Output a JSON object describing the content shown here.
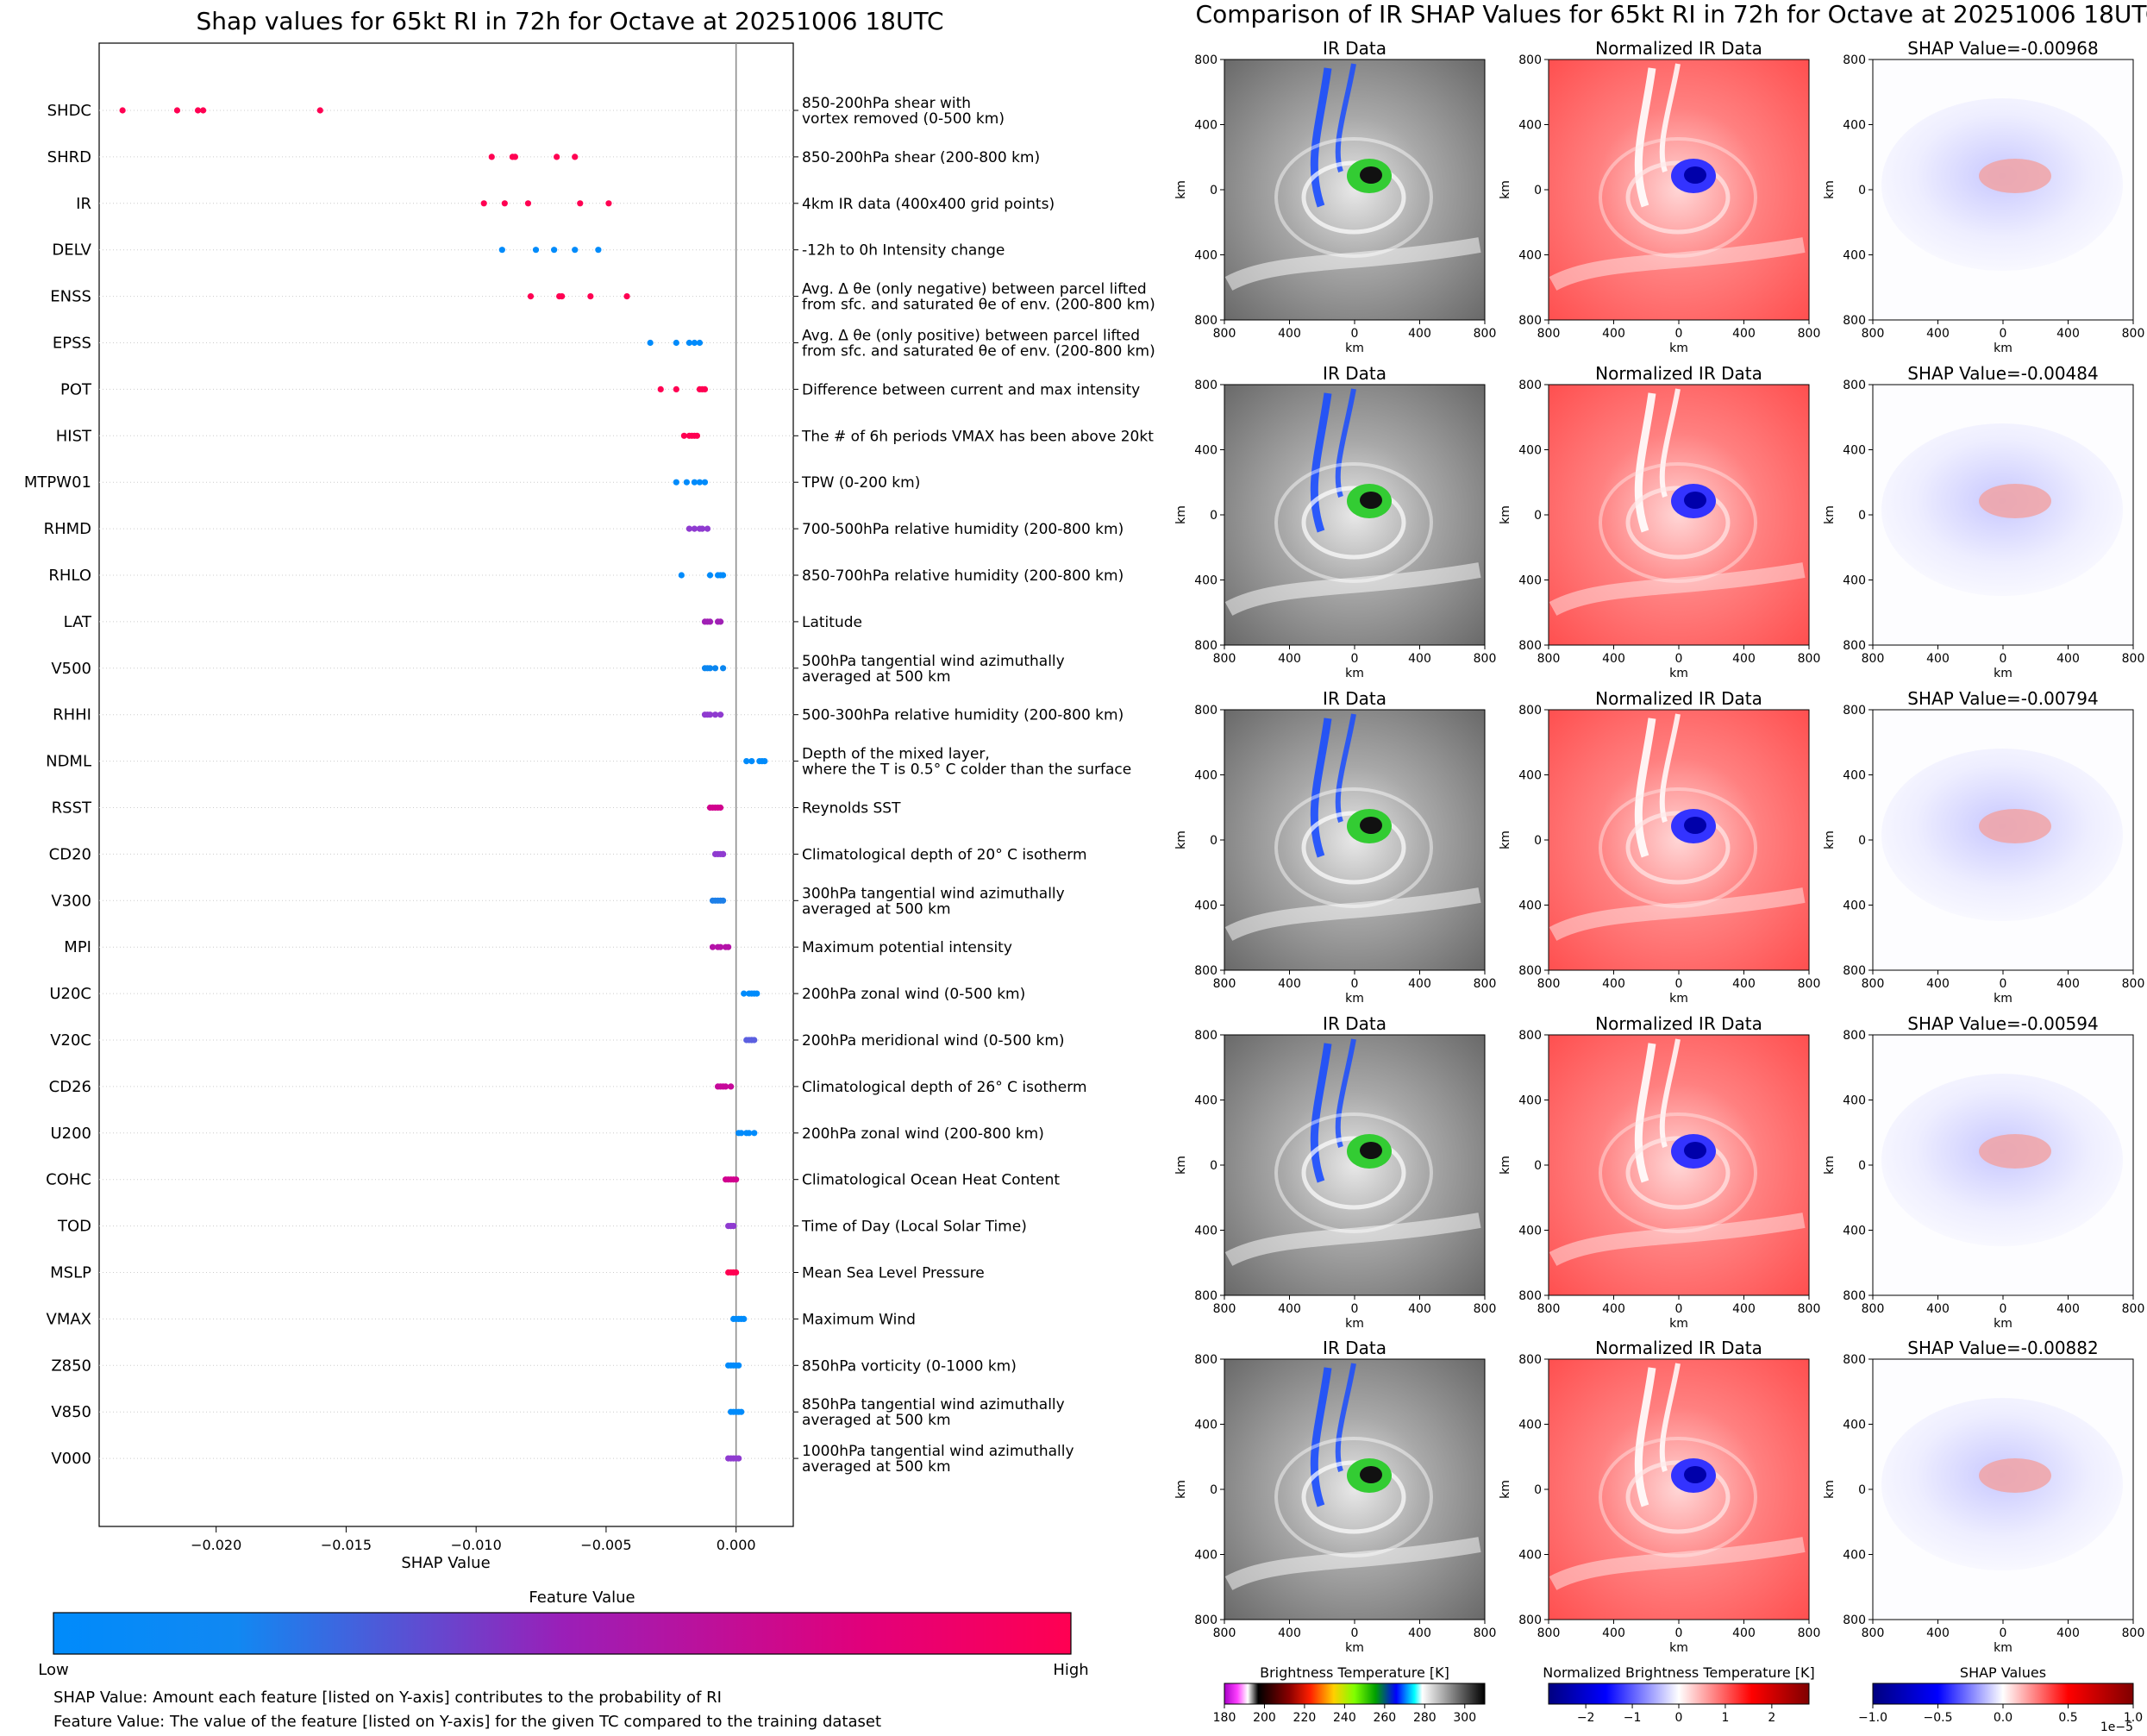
{
  "left": {
    "title": "Shap values for 65kt RI in 72h for Octave at 20251006 18UTC",
    "xlabel": "SHAP Value",
    "colorbar": {
      "title": "Feature Value",
      "low": "Low",
      "high": "High"
    },
    "notes": [
      "SHAP Value: Amount each feature [listed on Y-axis] contributes to the probability of RI",
      "Feature Value: The value of the feature [listed on Y-axis] for the given TC compared to the training dataset"
    ]
  },
  "right": {
    "title": "Comparison of IR SHAP Values for 65kt RI in 72h for Octave at 20251006 18UTC",
    "col_titles": [
      "IR Data",
      "Normalized IR Data"
    ],
    "shap_prefix": "SHAP Value=",
    "axis_label": "km",
    "ticks_x": [
      "800",
      "400",
      "0",
      "400",
      "800"
    ],
    "ticks_y": [
      "800",
      "400",
      "0",
      "400",
      "800"
    ],
    "rows": [
      {
        "shap_title": "SHAP Value=-0.00968"
      },
      {
        "shap_title": "SHAP Value=-0.00484"
      },
      {
        "shap_title": "SHAP Value=-0.00794"
      },
      {
        "shap_title": "SHAP Value=-0.00594"
      },
      {
        "shap_title": "SHAP Value=-0.00882"
      }
    ],
    "colorbars": [
      {
        "title": "Brightness Temperature [K]",
        "ticks": [
          "180",
          "200",
          "220",
          "240",
          "260",
          "280",
          "300"
        ]
      },
      {
        "title": "Normalized Brightness Temperature [K]",
        "ticks": [
          "−2",
          "−1",
          "0",
          "1",
          "2"
        ]
      },
      {
        "title": "SHAP Values",
        "ticks": [
          "−1.0",
          "−0.5",
          "0.0",
          "0.5",
          "1.0"
        ],
        "exponent": "1e−5"
      }
    ]
  },
  "chart_data": {
    "type": "scatter",
    "subtype": "shap-beeswarm",
    "xlim": [
      -0.0245,
      0.0022
    ],
    "xticks": [
      -0.02,
      -0.015,
      -0.01,
      -0.005,
      0.0
    ],
    "xtick_labels": [
      "−0.020",
      "−0.015",
      "−0.010",
      "−0.005",
      "0.000"
    ],
    "color_scale": {
      "low": "#008bfb",
      "high": "#ff0052"
    },
    "features": [
      {
        "name": "SHDC",
        "desc": [
          "850-200hPa shear with",
          "vortex removed (0-500 km)"
        ],
        "color": "#ff0052",
        "x": [
          -0.0236,
          -0.0215,
          -0.0207,
          -0.0205,
          -0.016
        ]
      },
      {
        "name": "SHRD",
        "desc": [
          "850-200hPa shear (200-800 km)"
        ],
        "color": "#ff0052",
        "x": [
          -0.0094,
          -0.0086,
          -0.0085,
          -0.0069,
          -0.0062
        ]
      },
      {
        "name": "IR",
        "desc": [
          "4km IR data (400x400 grid points)"
        ],
        "color": "#ff0052",
        "x": [
          -0.0097,
          -0.0089,
          -0.008,
          -0.006,
          -0.0049
        ]
      },
      {
        "name": "DELV",
        "desc": [
          "-12h to 0h Intensity change"
        ],
        "color": "#008bfb",
        "x": [
          -0.009,
          -0.0077,
          -0.007,
          -0.0062,
          -0.0053
        ]
      },
      {
        "name": "ENSS",
        "desc": [
          "Avg. Δ θe (only negative) between parcel lifted",
          "from sfc. and saturated θe of env. (200-800 km)"
        ],
        "color": "#ff0052",
        "x": [
          -0.0079,
          -0.0068,
          -0.0067,
          -0.0056,
          -0.0042
        ]
      },
      {
        "name": "EPSS",
        "desc": [
          "Avg. Δ θe (only positive) between parcel lifted",
          "from sfc. and saturated θe of env. (200-800 km)"
        ],
        "color": "#008bfb",
        "x": [
          -0.0033,
          -0.0023,
          -0.0018,
          -0.0016,
          -0.0014
        ]
      },
      {
        "name": "POT",
        "desc": [
          "Difference between current and max intensity"
        ],
        "color": "#ff0052",
        "x": [
          -0.0029,
          -0.0023,
          -0.0014,
          -0.0013,
          -0.0012
        ]
      },
      {
        "name": "HIST",
        "desc": [
          "The # of 6h periods VMAX has been above 20kt"
        ],
        "color": "#ff0052",
        "x": [
          -0.002,
          -0.0018,
          -0.0017,
          -0.0016,
          -0.0015
        ]
      },
      {
        "name": "MTPW01",
        "desc": [
          "TPW (0-200 km)"
        ],
        "color": "#008bfb",
        "x": [
          -0.0023,
          -0.0019,
          -0.0016,
          -0.0014,
          -0.0012
        ]
      },
      {
        "name": "RHMD",
        "desc": [
          "700-500hPa relative humidity (200-800 km)"
        ],
        "color": "#8f3bd0",
        "x": [
          -0.0018,
          -0.0016,
          -0.0014,
          -0.0013,
          -0.0011
        ]
      },
      {
        "name": "RHLO",
        "desc": [
          "850-700hPa relative humidity (200-800 km)"
        ],
        "color": "#008bfb",
        "x": [
          -0.0021,
          -0.001,
          -0.0007,
          -0.0006,
          -0.0005
        ]
      },
      {
        "name": "LAT",
        "desc": [
          "Latitude"
        ],
        "color": "#a020b5",
        "x": [
          -0.0012,
          -0.0011,
          -0.001,
          -0.0007,
          -0.0006
        ]
      },
      {
        "name": "V500",
        "desc": [
          "500hPa tangential wind azimuthally",
          "averaged at 500 km"
        ],
        "color": "#0a86f0",
        "x": [
          -0.0012,
          -0.0011,
          -0.001,
          -0.0008,
          -0.0005
        ]
      },
      {
        "name": "RHHI",
        "desc": [
          "500-300hPa relative humidity (200-800 km)"
        ],
        "color": "#8f3bd0",
        "x": [
          -0.0012,
          -0.0011,
          -0.001,
          -0.0008,
          -0.0006
        ]
      },
      {
        "name": "NDML",
        "desc": [
          "Depth of the mixed layer,",
          "where the T is 0.5° C colder than the surface"
        ],
        "color": "#008bfb",
        "x": [
          0.0004,
          0.0006,
          0.0009,
          0.001,
          0.0011
        ]
      },
      {
        "name": "RSST",
        "desc": [
          "Reynolds SST"
        ],
        "color": "#d1008e",
        "x": [
          -0.001,
          -0.0009,
          -0.0008,
          -0.0007,
          -0.0006
        ]
      },
      {
        "name": "CD20",
        "desc": [
          "Climatological depth of 20° C isotherm"
        ],
        "color": "#8f3bd0",
        "x": [
          -0.0008,
          -0.0007,
          -0.0006,
          -0.0005,
          -0.0005
        ]
      },
      {
        "name": "V300",
        "desc": [
          "300hPa tangential wind azimuthally",
          "averaged at 500 km"
        ],
        "color": "#1d7fe8",
        "x": [
          -0.0009,
          -0.0008,
          -0.0007,
          -0.0006,
          -0.0005
        ]
      },
      {
        "name": "MPI",
        "desc": [
          "Maximum potential intensity"
        ],
        "color": "#b412a8",
        "x": [
          -0.0009,
          -0.0007,
          -0.0006,
          -0.0004,
          -0.0003
        ]
      },
      {
        "name": "U20C",
        "desc": [
          "200hPa zonal wind (0-500 km)"
        ],
        "color": "#008bfb",
        "x": [
          0.0003,
          0.0005,
          0.0006,
          0.0007,
          0.0008
        ]
      },
      {
        "name": "V20C",
        "desc": [
          "200hPa meridional wind (0-500 km)"
        ],
        "color": "#5b5fe0",
        "x": [
          0.0004,
          0.0005,
          0.0006,
          0.0006,
          0.0007
        ]
      },
      {
        "name": "CD26",
        "desc": [
          "Climatological depth of 26° C isotherm"
        ],
        "color": "#c6089a",
        "x": [
          -0.0007,
          -0.0006,
          -0.0005,
          -0.0004,
          -0.0002
        ]
      },
      {
        "name": "U200",
        "desc": [
          "200hPa zonal wind (200-800 km)"
        ],
        "color": "#008bfb",
        "x": [
          0.0001,
          0.0002,
          0.0004,
          0.0005,
          0.0007
        ]
      },
      {
        "name": "COHC",
        "desc": [
          "Climatological Ocean Heat Content"
        ],
        "color": "#d1008e",
        "x": [
          -0.0004,
          -0.0003,
          -0.0002,
          -0.0001,
          0.0
        ]
      },
      {
        "name": "TOD",
        "desc": [
          "Time of Day (Local Solar Time)"
        ],
        "color": "#8f3bd0",
        "x": [
          -0.0003,
          -0.0002,
          -0.0002,
          -0.0001,
          -0.0001
        ]
      },
      {
        "name": "MSLP",
        "desc": [
          "Mean Sea Level Pressure"
        ],
        "color": "#ff0052",
        "x": [
          -0.0003,
          -0.0002,
          -0.0001,
          -0.0001,
          0.0
        ]
      },
      {
        "name": "VMAX",
        "desc": [
          "Maximum Wind"
        ],
        "color": "#008bfb",
        "x": [
          -0.0001,
          0.0,
          0.0001,
          0.0002,
          0.0003
        ]
      },
      {
        "name": "Z850",
        "desc": [
          "850hPa vorticity (0-1000 km)"
        ],
        "color": "#008bfb",
        "x": [
          -0.0003,
          -0.0002,
          -0.0001,
          0.0,
          0.0001
        ]
      },
      {
        "name": "V850",
        "desc": [
          "850hPa tangential wind azimuthally",
          "averaged at 500 km"
        ],
        "color": "#008bfb",
        "x": [
          -0.0002,
          -0.0001,
          0.0,
          0.0001,
          0.0002
        ]
      },
      {
        "name": "V000",
        "desc": [
          "1000hPa tangential wind azimuthally",
          "averaged at 500 km"
        ],
        "color": "#8f3bd0",
        "x": [
          -0.0003,
          -0.0002,
          -0.0001,
          0.0,
          0.0001
        ]
      }
    ]
  }
}
